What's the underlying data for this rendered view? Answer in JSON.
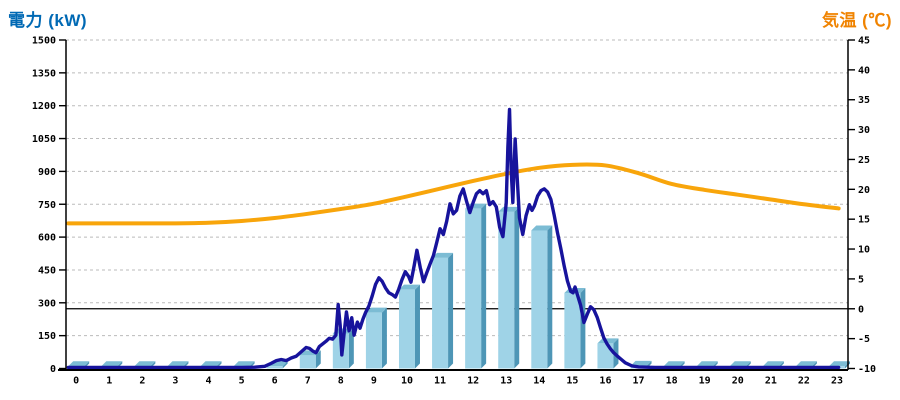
{
  "titles": {
    "left": "電力 (kW)",
    "right": "気温 (℃)"
  },
  "colors": {
    "power_title": "#0069B4",
    "temp_title": "#F08300",
    "bar_face": "#9FD3E7",
    "bar_top": "#7CBCD4",
    "bar_side": "#4E96B6",
    "power_line": "#17139C",
    "temp_line": "#F8A50B",
    "grid": "#BBBBBB",
    "axis": "#000000",
    "zero_line": "#000000"
  },
  "chart_data": {
    "type": "combo",
    "title": "",
    "legend": "none",
    "grid": "horizontal dashed at left-axis steps",
    "x_labels": [
      "0",
      "1",
      "2",
      "3",
      "4",
      "5",
      "6",
      "7",
      "8",
      "9",
      "10",
      "11",
      "12",
      "13",
      "14",
      "15",
      "16",
      "17",
      "18",
      "19",
      "20",
      "21",
      "22",
      "23"
    ],
    "left_axis": {
      "title": "電力 (kW)",
      "min": 0,
      "max": 1500,
      "step": 150
    },
    "right_axis": {
      "title": "気温 (℃)",
      "min": -10,
      "max": 45,
      "step": 5
    },
    "zero_temp_reference_line_c": 0,
    "power_bars_kw": [
      10,
      10,
      10,
      10,
      10,
      10,
      10,
      60,
      160,
      255,
      360,
      505,
      730,
      715,
      630,
      345,
      115,
      12,
      10,
      10,
      10,
      10,
      10,
      10
    ],
    "power_line_kw": [
      [
        -0.24,
        5
      ],
      [
        0.5,
        5
      ],
      [
        1,
        5
      ],
      [
        1.5,
        5
      ],
      [
        2,
        5
      ],
      [
        2.5,
        5
      ],
      [
        3,
        5
      ],
      [
        3.5,
        5
      ],
      [
        4,
        5
      ],
      [
        4.5,
        5
      ],
      [
        5,
        5
      ],
      [
        5.4,
        6
      ],
      [
        5.7,
        10
      ],
      [
        5.9,
        24
      ],
      [
        6.05,
        36
      ],
      [
        6.2,
        41
      ],
      [
        6.35,
        36
      ],
      [
        6.5,
        48
      ],
      [
        6.65,
        56
      ],
      [
        6.8,
        76
      ],
      [
        6.95,
        96
      ],
      [
        7.05,
        92
      ],
      [
        7.15,
        80
      ],
      [
        7.25,
        72
      ],
      [
        7.35,
        100
      ],
      [
        7.45,
        112
      ],
      [
        7.55,
        124
      ],
      [
        7.65,
        138
      ],
      [
        7.75,
        134
      ],
      [
        7.85,
        152
      ],
      [
        7.92,
        292
      ],
      [
        7.98,
        198
      ],
      [
        8.03,
        62
      ],
      [
        8.1,
        162
      ],
      [
        8.17,
        258
      ],
      [
        8.25,
        172
      ],
      [
        8.33,
        232
      ],
      [
        8.4,
        152
      ],
      [
        8.5,
        212
      ],
      [
        8.58,
        184
      ],
      [
        8.67,
        226
      ],
      [
        8.75,
        256
      ],
      [
        8.85,
        286
      ],
      [
        8.95,
        332
      ],
      [
        9.05,
        384
      ],
      [
        9.15,
        414
      ],
      [
        9.25,
        398
      ],
      [
        9.35,
        368
      ],
      [
        9.45,
        346
      ],
      [
        9.55,
        338
      ],
      [
        9.65,
        326
      ],
      [
        9.75,
        362
      ],
      [
        9.85,
        406
      ],
      [
        9.95,
        442
      ],
      [
        10.05,
        420
      ],
      [
        10.12,
        394
      ],
      [
        10.22,
        472
      ],
      [
        10.3,
        540
      ],
      [
        10.4,
        462
      ],
      [
        10.5,
        396
      ],
      [
        10.6,
        438
      ],
      [
        10.7,
        478
      ],
      [
        10.8,
        516
      ],
      [
        10.9,
        576
      ],
      [
        11.0,
        638
      ],
      [
        11.1,
        612
      ],
      [
        11.2,
        672
      ],
      [
        11.3,
        752
      ],
      [
        11.4,
        706
      ],
      [
        11.5,
        722
      ],
      [
        11.6,
        788
      ],
      [
        11.7,
        820
      ],
      [
        11.8,
        764
      ],
      [
        11.9,
        712
      ],
      [
        12.0,
        758
      ],
      [
        12.1,
        798
      ],
      [
        12.2,
        812
      ],
      [
        12.3,
        798
      ],
      [
        12.4,
        812
      ],
      [
        12.5,
        748
      ],
      [
        12.6,
        762
      ],
      [
        12.7,
        738
      ],
      [
        12.8,
        646
      ],
      [
        12.9,
        602
      ],
      [
        13.0,
        756
      ],
      [
        13.05,
        1012
      ],
      [
        13.1,
        1183
      ],
      [
        13.15,
        906
      ],
      [
        13.2,
        758
      ],
      [
        13.27,
        1048
      ],
      [
        13.33,
        876
      ],
      [
        13.4,
        688
      ],
      [
        13.5,
        612
      ],
      [
        13.6,
        698
      ],
      [
        13.7,
        748
      ],
      [
        13.78,
        722
      ],
      [
        13.85,
        742
      ],
      [
        13.95,
        788
      ],
      [
        14.05,
        812
      ],
      [
        14.15,
        820
      ],
      [
        14.25,
        806
      ],
      [
        14.35,
        772
      ],
      [
        14.45,
        700
      ],
      [
        14.55,
        620
      ],
      [
        14.65,
        548
      ],
      [
        14.75,
        470
      ],
      [
        14.85,
        400
      ],
      [
        14.95,
        352
      ],
      [
        15.02,
        346
      ],
      [
        15.08,
        372
      ],
      [
        15.15,
        338
      ],
      [
        15.25,
        288
      ],
      [
        15.35,
        210
      ],
      [
        15.45,
        248
      ],
      [
        15.55,
        282
      ],
      [
        15.65,
        268
      ],
      [
        15.75,
        234
      ],
      [
        15.85,
        186
      ],
      [
        15.95,
        140
      ],
      [
        16.05,
        112
      ],
      [
        16.15,
        90
      ],
      [
        16.25,
        72
      ],
      [
        16.35,
        58
      ],
      [
        16.45,
        45
      ],
      [
        16.6,
        26
      ],
      [
        16.8,
        12
      ],
      [
        17.0,
        7
      ],
      [
        17.5,
        5
      ],
      [
        18,
        5
      ],
      [
        18.5,
        5
      ],
      [
        19,
        5
      ],
      [
        19.5,
        5
      ],
      [
        20,
        5
      ],
      [
        20.5,
        5
      ],
      [
        21,
        5
      ],
      [
        21.5,
        5
      ],
      [
        22,
        5
      ],
      [
        22.5,
        5
      ],
      [
        23.05,
        5
      ]
    ],
    "temperature_line_c": [
      [
        -0.24,
        14.3
      ],
      [
        0,
        14.3
      ],
      [
        1,
        14.3
      ],
      [
        2,
        14.3
      ],
      [
        3,
        14.3
      ],
      [
        4,
        14.4
      ],
      [
        5,
        14.7
      ],
      [
        6,
        15.2
      ],
      [
        7,
        15.9
      ],
      [
        8,
        16.7
      ],
      [
        9,
        17.6
      ],
      [
        10,
        18.8
      ],
      [
        11,
        20.1
      ],
      [
        12,
        21.4
      ],
      [
        13,
        22.6
      ],
      [
        14,
        23.6
      ],
      [
        15,
        24.1
      ],
      [
        16,
        24.0
      ],
      [
        17,
        22.7
      ],
      [
        18,
        20.9
      ],
      [
        19,
        19.9
      ],
      [
        20,
        19.1
      ],
      [
        21,
        18.3
      ],
      [
        22,
        17.5
      ],
      [
        23.05,
        16.8
      ]
    ]
  }
}
